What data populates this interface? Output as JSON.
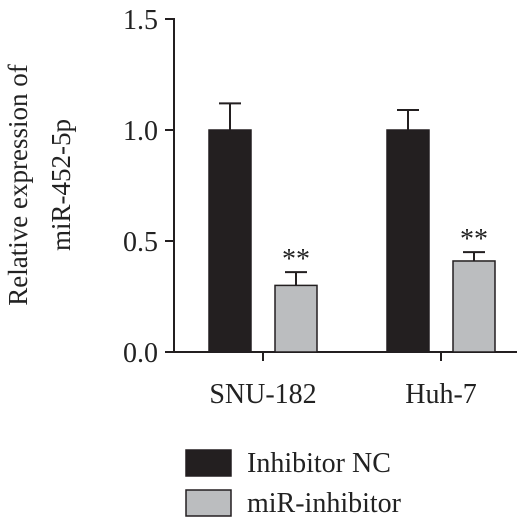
{
  "chart_data": {
    "type": "bar",
    "title": "",
    "xlabel": "",
    "ylabel": [
      "Relative expression of",
      "miR-452-5p"
    ],
    "ylim": [
      0,
      1.5
    ],
    "yticks": [
      "0.0",
      "0.5",
      "1.0",
      "1.5"
    ],
    "categories": [
      "SNU-182",
      "Huh-7"
    ],
    "series": [
      {
        "name": "Inhibitor NC",
        "color": "#231f20",
        "values": [
          1.0,
          1.0
        ],
        "errors": [
          0.12,
          0.09
        ],
        "annotations": [
          "",
          ""
        ]
      },
      {
        "name": "miR-inhibitor",
        "color": "#bbbdbf",
        "values": [
          0.3,
          0.41
        ],
        "errors": [
          0.06,
          0.04
        ],
        "annotations": [
          "**",
          "**"
        ]
      }
    ],
    "legend_position": "bottom",
    "grid": false
  }
}
